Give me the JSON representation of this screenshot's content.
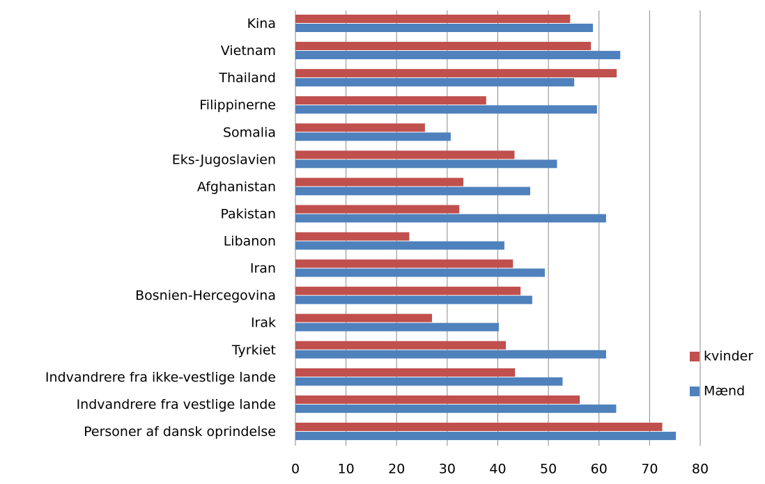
{
  "chart_data": {
    "type": "hbar",
    "categories": [
      "Kina",
      "Vietnam",
      "Thailand",
      "Filippinerne",
      "Somalia",
      "Eks-Jugoslavien",
      "Afghanistan",
      "Pakistan",
      "Libanon",
      "Iran",
      "Bosnien-Hercegovina",
      "Irak",
      "Tyrkiet",
      "Indvandrere fra ikke-vestlige lande",
      "Indvandrere fra vestlige lande",
      "Personer af dansk oprindelse"
    ],
    "series": [
      {
        "name": "kvinder",
        "color": "#c0504d",
        "values": [
          54.3,
          58.4,
          63.5,
          37.7,
          25.6,
          43.3,
          33.2,
          32.4,
          22.5,
          43.0,
          44.5,
          27.0,
          41.6,
          43.4,
          56.2,
          72.5
        ]
      },
      {
        "name": "Mænd",
        "color": "#4f81bd",
        "values": [
          58.8,
          64.2,
          55.1,
          59.6,
          30.7,
          51.7,
          46.4,
          61.4,
          41.3,
          49.3,
          46.8,
          40.2,
          61.4,
          52.8,
          63.4,
          75.2
        ]
      }
    ],
    "xlim": [
      0,
      80
    ],
    "xticks": [
      0,
      10,
      20,
      30,
      40,
      50,
      60,
      70,
      80
    ],
    "grid": true,
    "legend": "right"
  }
}
